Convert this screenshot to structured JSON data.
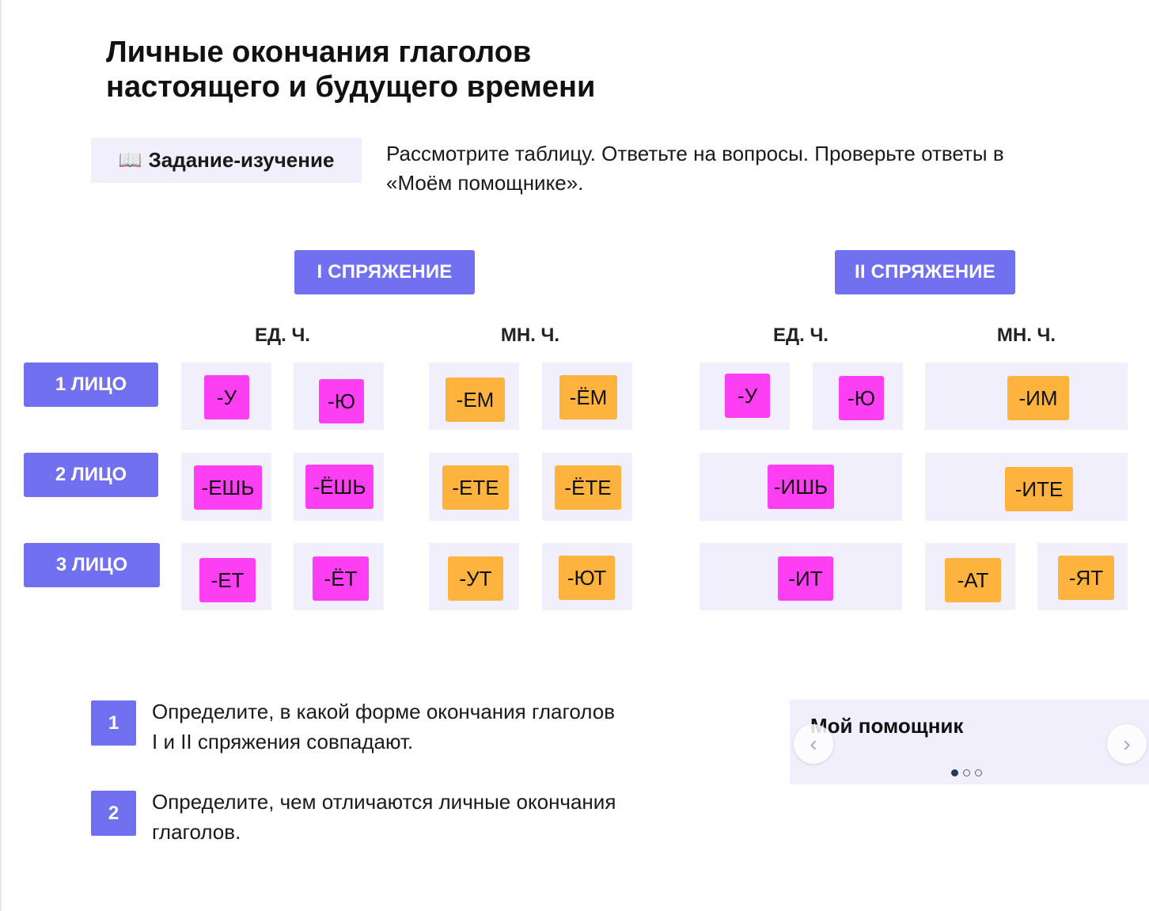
{
  "title_line1": "Личные окончания глаголов",
  "title_line2": "настоящего и будущего времени",
  "task": {
    "icon": "book-icon",
    "label": "Задание-изучение",
    "text": "Рассмотрите таблицу. Ответьте на вопросы. Проверьте ответы в «Моём помощнике»."
  },
  "table": {
    "conj1": "I СПРЯЖЕНИЕ",
    "conj2": "II СПРЯЖЕНИЕ",
    "singular": "ЕД. Ч.",
    "plural": "МН. Ч.",
    "persons": [
      "1 ЛИЦО",
      "2 ЛИЦО",
      "3 ЛИЦО"
    ],
    "colors": {
      "pink": "#fd3ef3",
      "orange": "#fdb33e",
      "accent": "#7070f0",
      "cell_bg": "#f0effb"
    },
    "endings": {
      "c1_sg": [
        [
          "-У",
          "-Ю"
        ],
        [
          "-ЕШЬ",
          "-ЁШЬ"
        ],
        [
          "-ЕТ",
          "-ЁТ"
        ]
      ],
      "c1_pl": [
        [
          "-ЕМ",
          "-ЁМ"
        ],
        [
          "-ЕТЕ",
          "-ЁТЕ"
        ],
        [
          "-УТ",
          "-ЮТ"
        ]
      ],
      "c2_sg": [
        [
          "-У",
          "-Ю"
        ],
        [
          "-ИШЬ"
        ],
        [
          "-ИТ"
        ]
      ],
      "c2_pl": [
        [
          "-ИМ"
        ],
        [
          "-ИТЕ"
        ],
        [
          "-АТ",
          "-ЯТ"
        ]
      ]
    }
  },
  "questions": [
    {
      "number": "1",
      "text_line1": "Определите, в какой форме окончания глаголов",
      "text_line2": "I и II спряжения совпадают."
    },
    {
      "number": "2",
      "text_line1": "Определите, чем отличаются личные окончания",
      "text_line2": "глаголов."
    }
  ],
  "helper": {
    "title": "Мой помощник",
    "prev_icon": "chevron-left-icon",
    "next_icon": "chevron-right-icon",
    "pages": 3,
    "current_page": 1
  }
}
